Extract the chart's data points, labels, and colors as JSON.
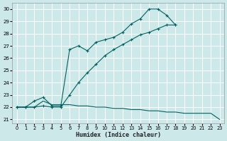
{
  "xlabel": "Humidex (Indice chaleur)",
  "ylabel": "",
  "bg_color": "#cde8e8",
  "grid_color": "#b8d8d8",
  "line_color": "#006060",
  "xlim": [
    -0.5,
    23.5
  ],
  "ylim": [
    20.7,
    30.5
  ],
  "xticks": [
    0,
    1,
    2,
    3,
    4,
    5,
    6,
    7,
    8,
    9,
    10,
    11,
    12,
    13,
    14,
    15,
    16,
    17,
    18,
    19,
    20,
    21,
    22,
    23
  ],
  "yticks": [
    21,
    22,
    23,
    24,
    25,
    26,
    27,
    28,
    29,
    30
  ],
  "line1_x": [
    0,
    1,
    2,
    3,
    4,
    5,
    6,
    7,
    8,
    9,
    10,
    11,
    12,
    13,
    14,
    15,
    16,
    17,
    18
  ],
  "line1_y": [
    22.0,
    22.0,
    22.5,
    22.8,
    22.1,
    22.1,
    26.7,
    27.0,
    26.6,
    27.3,
    27.5,
    27.7,
    28.1,
    28.8,
    29.2,
    30.0,
    30.0,
    29.5,
    28.7
  ],
  "line2_x": [
    0,
    1,
    2,
    3,
    4,
    5,
    6,
    7,
    8,
    9,
    10,
    11,
    12,
    13,
    14,
    15,
    16,
    17,
    18
  ],
  "line2_y": [
    22.0,
    22.0,
    22.0,
    22.1,
    22.0,
    22.0,
    23.0,
    24.0,
    24.8,
    25.5,
    26.2,
    26.7,
    27.1,
    27.5,
    27.9,
    28.1,
    28.4,
    28.7,
    28.7
  ],
  "line3_x": [
    0,
    1,
    2,
    3,
    4,
    5,
    6,
    7,
    8,
    9,
    10,
    11,
    12,
    13,
    14,
    15,
    16,
    17,
    18,
    19,
    20,
    21,
    22,
    23
  ],
  "line3_y": [
    22.0,
    22.0,
    22.0,
    22.5,
    22.2,
    22.2,
    22.2,
    22.1,
    22.1,
    22.0,
    22.0,
    21.9,
    21.9,
    21.8,
    21.8,
    21.7,
    21.7,
    21.6,
    21.6,
    21.5,
    21.5,
    21.5,
    21.5,
    21.0
  ]
}
